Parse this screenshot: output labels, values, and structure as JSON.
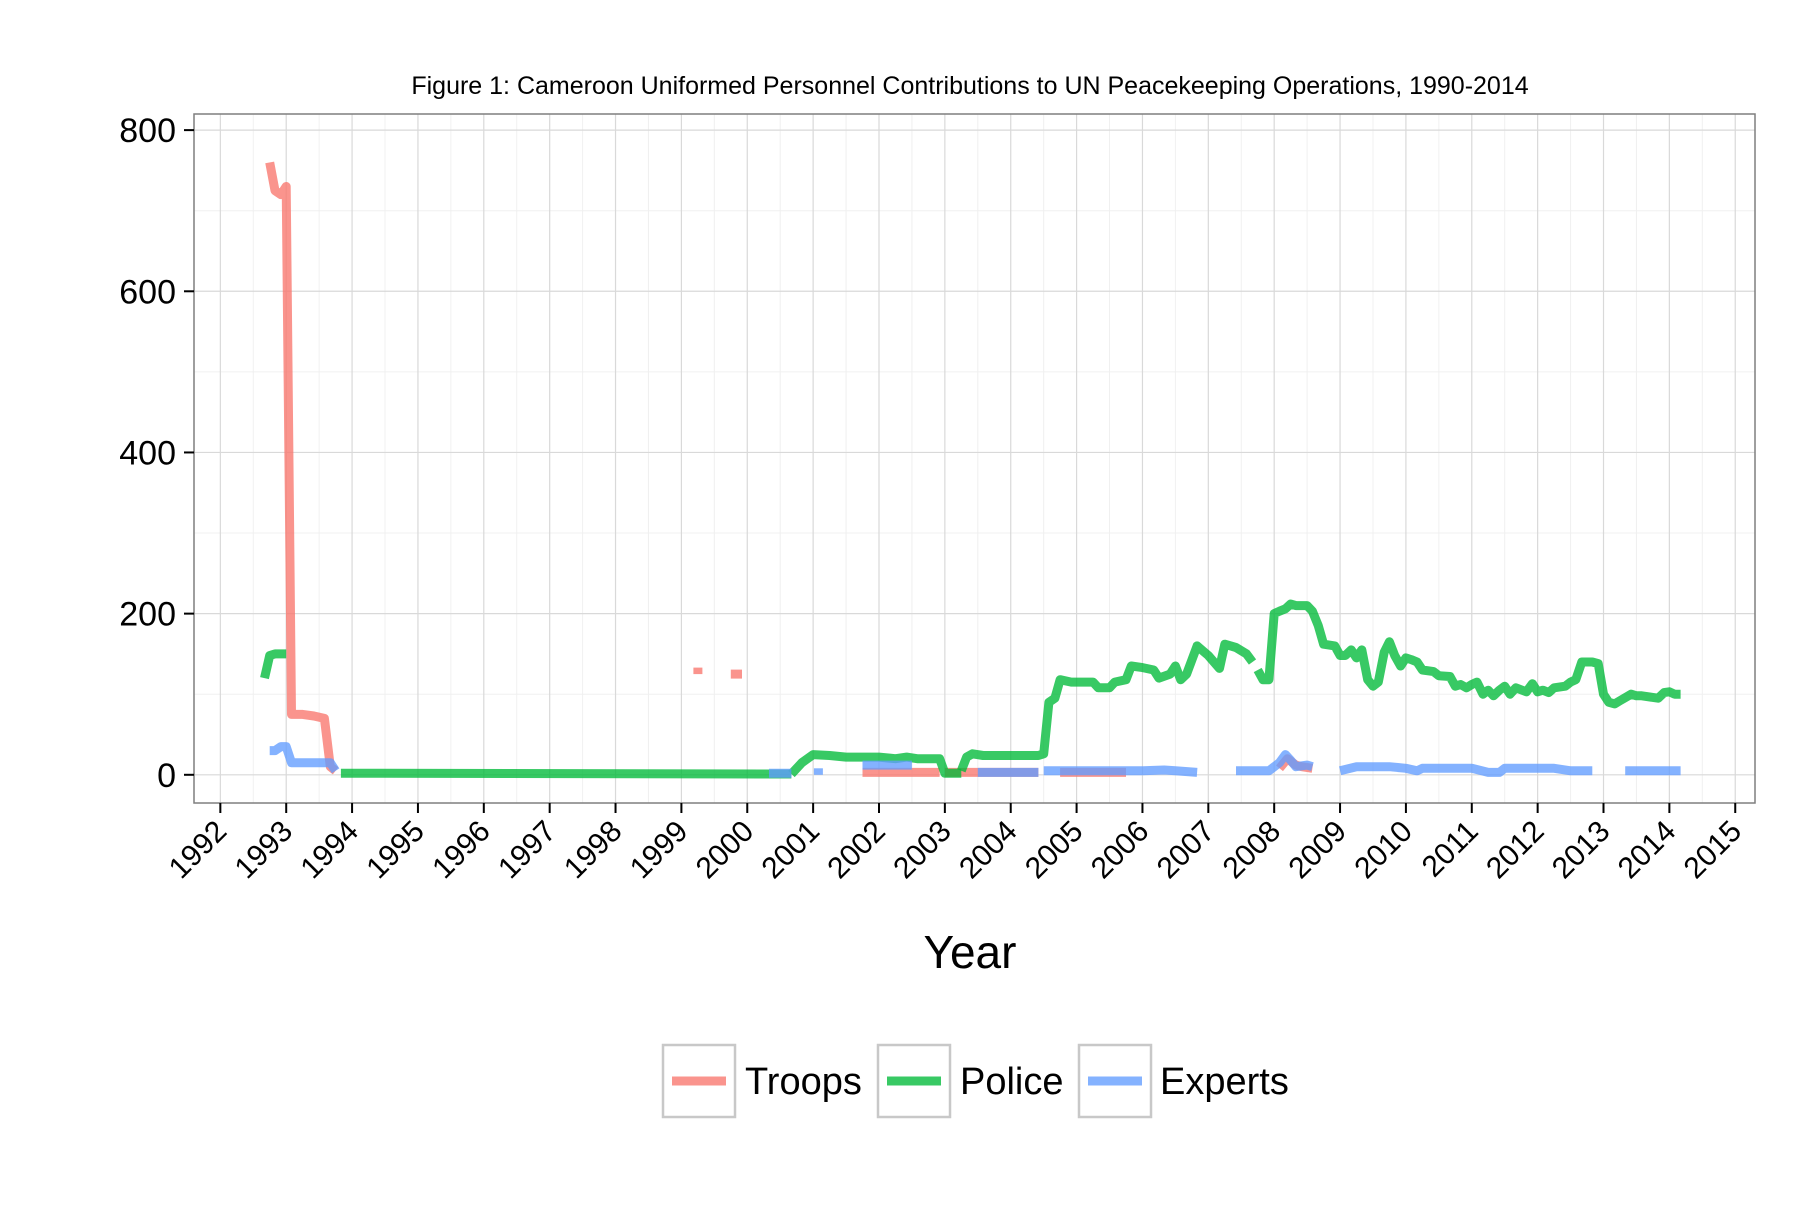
{
  "chart_data": {
    "type": "line",
    "title": "Figure 1: Cameroon Uniformed Personnel Contributions to UN Peacekeeping Operations, 1990-2014",
    "xlabel": "Year",
    "ylabel": "",
    "xlim": [
      1991.6,
      2015.3
    ],
    "ylim": [
      -35,
      820
    ],
    "x_ticks": [
      "1992",
      "1993",
      "1994",
      "1995",
      "1996",
      "1997",
      "1998",
      "1999",
      "2000",
      "2001",
      "2002",
      "2003",
      "2004",
      "2005",
      "2006",
      "2007",
      "2008",
      "2009",
      "2010",
      "2011",
      "2012",
      "2013",
      "2014",
      "2015"
    ],
    "y_ticks": [
      0,
      200,
      400,
      600,
      800
    ],
    "y_tick_labels": [
      "0",
      "200",
      "400",
      "600",
      "800"
    ],
    "grid": true,
    "legend_position": "bottom",
    "colors": {
      "Troops": "#F8766D",
      "Police": "#00BA38",
      "Experts": "#619CFF",
      "panel_border": "#7f7f7f",
      "grid_major": "#d9d9d9",
      "grid_minor": "#f0f0f0"
    },
    "series": [
      {
        "name": "Troops",
        "segments": [
          [
            [
              1992.75,
              760
            ],
            [
              1992.83,
              725
            ],
            [
              1992.92,
              720
            ],
            [
              1993.0,
              730
            ],
            [
              1993.08,
              75
            ],
            [
              1993.25,
              75
            ],
            [
              1993.42,
              73
            ],
            [
              1993.58,
              70
            ],
            [
              1993.67,
              10
            ],
            [
              1993.75,
              5
            ]
          ],
          [
            [
              1999.25,
              125
            ],
            [
              1999.25,
              133
            ]
          ],
          [
            [
              1999.75,
              125
            ],
            [
              1999.92,
              125
            ]
          ],
          [
            [
              2001.75,
              3
            ],
            [
              2002.33,
              3
            ],
            [
              2002.92,
              3
            ]
          ],
          [
            [
              2003.0,
              3
            ],
            [
              2003.5,
              3
            ],
            [
              2004.42,
              3
            ]
          ],
          [
            [
              2004.75,
              3
            ],
            [
              2005.75,
              3
            ]
          ],
          [
            [
              2008.08,
              8
            ],
            [
              2008.2,
              20
            ],
            [
              2008.33,
              12
            ],
            [
              2008.42,
              10
            ],
            [
              2008.58,
              8
            ]
          ]
        ]
      },
      {
        "name": "Police",
        "segments": [
          [
            [
              1992.67,
              120
            ],
            [
              1992.75,
              148
            ],
            [
              1992.83,
              150
            ],
            [
              1993.0,
              150
            ]
          ],
          [
            [
              1993.83,
              2
            ],
            [
              1994.0,
              2
            ],
            [
              2000.67,
              1
            ]
          ],
          [
            [
              2000.67,
              1
            ],
            [
              2000.83,
              15
            ],
            [
              2001.0,
              25
            ],
            [
              2001.25,
              24
            ],
            [
              2001.5,
              22
            ],
            [
              2001.75,
              22
            ],
            [
              2002.0,
              22
            ],
            [
              2002.25,
              20
            ],
            [
              2002.42,
              22
            ],
            [
              2002.58,
              20
            ],
            [
              2002.92,
              20
            ],
            [
              2003.0,
              2
            ],
            [
              2003.25,
              2
            ]
          ],
          [
            [
              2003.25,
              5
            ],
            [
              2003.33,
              22
            ],
            [
              2003.42,
              26
            ],
            [
              2003.58,
              24
            ],
            [
              2003.75,
              24
            ],
            [
              2004.0,
              24
            ],
            [
              2004.25,
              24
            ],
            [
              2004.42,
              24
            ],
            [
              2004.5,
              26
            ],
            [
              2004.58,
              90
            ],
            [
              2004.67,
              95
            ],
            [
              2004.75,
              118
            ],
            [
              2004.92,
              115
            ],
            [
              2005.08,
              115
            ],
            [
              2005.25,
              115
            ],
            [
              2005.33,
              108
            ],
            [
              2005.5,
              108
            ],
            [
              2005.58,
              115
            ],
            [
              2005.75,
              118
            ],
            [
              2005.83,
              135
            ],
            [
              2006.0,
              133
            ],
            [
              2006.17,
              130
            ],
            [
              2006.25,
              120
            ],
            [
              2006.42,
              125
            ],
            [
              2006.5,
              135
            ],
            [
              2006.58,
              118
            ],
            [
              2006.67,
              125
            ],
            [
              2006.83,
              160
            ],
            [
              2007.0,
              148
            ],
            [
              2007.17,
              132
            ],
            [
              2007.25,
              162
            ],
            [
              2007.42,
              158
            ],
            [
              2007.58,
              150
            ],
            [
              2007.67,
              140
            ]
          ],
          [
            [
              2007.75,
              130
            ],
            [
              2007.83,
              118
            ],
            [
              2007.92,
              118
            ],
            [
              2008.0,
              200
            ],
            [
              2008.08,
              203
            ],
            [
              2008.17,
              206
            ],
            [
              2008.25,
              212
            ],
            [
              2008.33,
              210
            ],
            [
              2008.5,
              210
            ],
            [
              2008.58,
              203
            ],
            [
              2008.67,
              185
            ],
            [
              2008.75,
              162
            ],
            [
              2008.92,
              160
            ],
            [
              2009.0,
              148
            ],
            [
              2009.08,
              148
            ],
            [
              2009.17,
              155
            ],
            [
              2009.25,
              145
            ],
            [
              2009.33,
              155
            ],
            [
              2009.42,
              118
            ],
            [
              2009.5,
              110
            ],
            [
              2009.58,
              115
            ],
            [
              2009.67,
              152
            ],
            [
              2009.75,
              165
            ],
            [
              2009.83,
              148
            ],
            [
              2009.92,
              135
            ],
            [
              2010.0,
              145
            ],
            [
              2010.08,
              143
            ],
            [
              2010.17,
              140
            ],
            [
              2010.25,
              130
            ],
            [
              2010.42,
              128
            ],
            [
              2010.5,
              123
            ],
            [
              2010.67,
              122
            ],
            [
              2010.75,
              110
            ],
            [
              2010.83,
              112
            ],
            [
              2010.92,
              108
            ],
            [
              2011.0,
              112
            ],
            [
              2011.08,
              115
            ],
            [
              2011.17,
              100
            ],
            [
              2011.25,
              105
            ],
            [
              2011.33,
              98
            ],
            [
              2011.42,
              105
            ],
            [
              2011.5,
              110
            ],
            [
              2011.58,
              100
            ],
            [
              2011.67,
              108
            ],
            [
              2011.83,
              103
            ],
            [
              2011.92,
              113
            ],
            [
              2012.0,
              103
            ],
            [
              2012.08,
              105
            ],
            [
              2012.17,
              102
            ],
            [
              2012.25,
              108
            ],
            [
              2012.42,
              110
            ],
            [
              2012.5,
              115
            ],
            [
              2012.58,
              118
            ],
            [
              2012.67,
              140
            ],
            [
              2012.83,
              140
            ],
            [
              2012.92,
              138
            ],
            [
              2013.0,
              100
            ],
            [
              2013.08,
              90
            ],
            [
              2013.17,
              88
            ],
            [
              2013.25,
              92
            ],
            [
              2013.42,
              100
            ],
            [
              2013.5,
              98
            ],
            [
              2013.58,
              98
            ],
            [
              2013.75,
              96
            ],
            [
              2013.83,
              95
            ],
            [
              2013.92,
              102
            ],
            [
              2014.0,
              103
            ],
            [
              2014.08,
              100
            ],
            [
              2014.17,
              100
            ]
          ]
        ]
      },
      {
        "name": "Experts",
        "segments": [
          [
            [
              1992.75,
              30
            ],
            [
              1992.83,
              30
            ],
            [
              1992.92,
              35
            ],
            [
              1993.0,
              35
            ],
            [
              1993.08,
              15
            ],
            [
              1993.33,
              15
            ],
            [
              1993.5,
              15
            ],
            [
              1993.67,
              15
            ],
            [
              1993.75,
              5
            ]
          ],
          [
            [
              2000.33,
              2
            ],
            [
              2000.67,
              2
            ]
          ],
          [
            [
              2001.08,
              0
            ],
            [
              2001.08,
              8
            ]
          ],
          [
            [
              2001.75,
              12
            ],
            [
              2002.5,
              12
            ]
          ],
          [
            [
              2003.5,
              3
            ],
            [
              2004.42,
              3
            ]
          ],
          [
            [
              2004.5,
              5
            ],
            [
              2005.75,
              5
            ],
            [
              2006.0,
              5
            ],
            [
              2006.33,
              6
            ],
            [
              2006.5,
              5
            ],
            [
              2006.83,
              3
            ]
          ],
          [
            [
              2007.42,
              5
            ],
            [
              2007.92,
              5
            ],
            [
              2008.08,
              15
            ],
            [
              2008.17,
              25
            ],
            [
              2008.25,
              18
            ],
            [
              2008.33,
              10
            ],
            [
              2008.5,
              12
            ],
            [
              2008.58,
              10
            ]
          ],
          [
            [
              2009.0,
              5
            ],
            [
              2009.25,
              10
            ],
            [
              2009.5,
              10
            ],
            [
              2009.75,
              10
            ],
            [
              2010.0,
              8
            ],
            [
              2010.17,
              5
            ],
            [
              2010.25,
              8
            ],
            [
              2010.5,
              8
            ],
            [
              2010.75,
              8
            ],
            [
              2011.0,
              8
            ],
            [
              2011.25,
              3
            ],
            [
              2011.42,
              3
            ],
            [
              2011.5,
              8
            ],
            [
              2011.75,
              8
            ],
            [
              2012.0,
              8
            ],
            [
              2012.25,
              8
            ],
            [
              2012.5,
              5
            ],
            [
              2012.75,
              5
            ],
            [
              2012.83,
              5
            ]
          ],
          [
            [
              2013.33,
              5
            ],
            [
              2014.17,
              5
            ]
          ]
        ]
      }
    ]
  }
}
